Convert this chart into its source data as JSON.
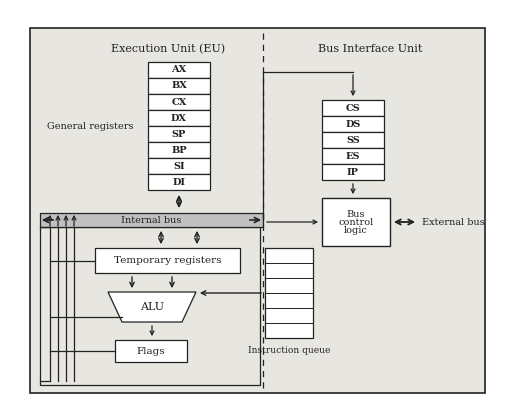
{
  "bg_color": "#e8e6e0",
  "title_eu": "Execution Unit (EU)",
  "title_biu": "Bus Interface Unit",
  "gen_regs_label": "General registers",
  "gen_regs": [
    "AX",
    "BX",
    "CX",
    "DX",
    "SP",
    "BP",
    "SI",
    "DI"
  ],
  "seg_regs": [
    "CS",
    "DS",
    "SS",
    "ES",
    "IP"
  ],
  "internal_bus_label": "Internal bus",
  "temp_reg_label": "Temporary registers",
  "alu_label": "ALU",
  "flags_label": "Flags",
  "bus_ctrl_line1": "Bus",
  "bus_ctrl_line2": "control",
  "bus_ctrl_line3": "logic",
  "ext_bus_label": "External bus",
  "instr_queue_label": "Instruction queue",
  "line_color": "#222222",
  "box_fill": "#ffffff",
  "font_size_title": 8,
  "font_size_reg": 7,
  "font_size_label": 7,
  "fig_w": 5.19,
  "fig_h": 4.19,
  "dpi": 100
}
